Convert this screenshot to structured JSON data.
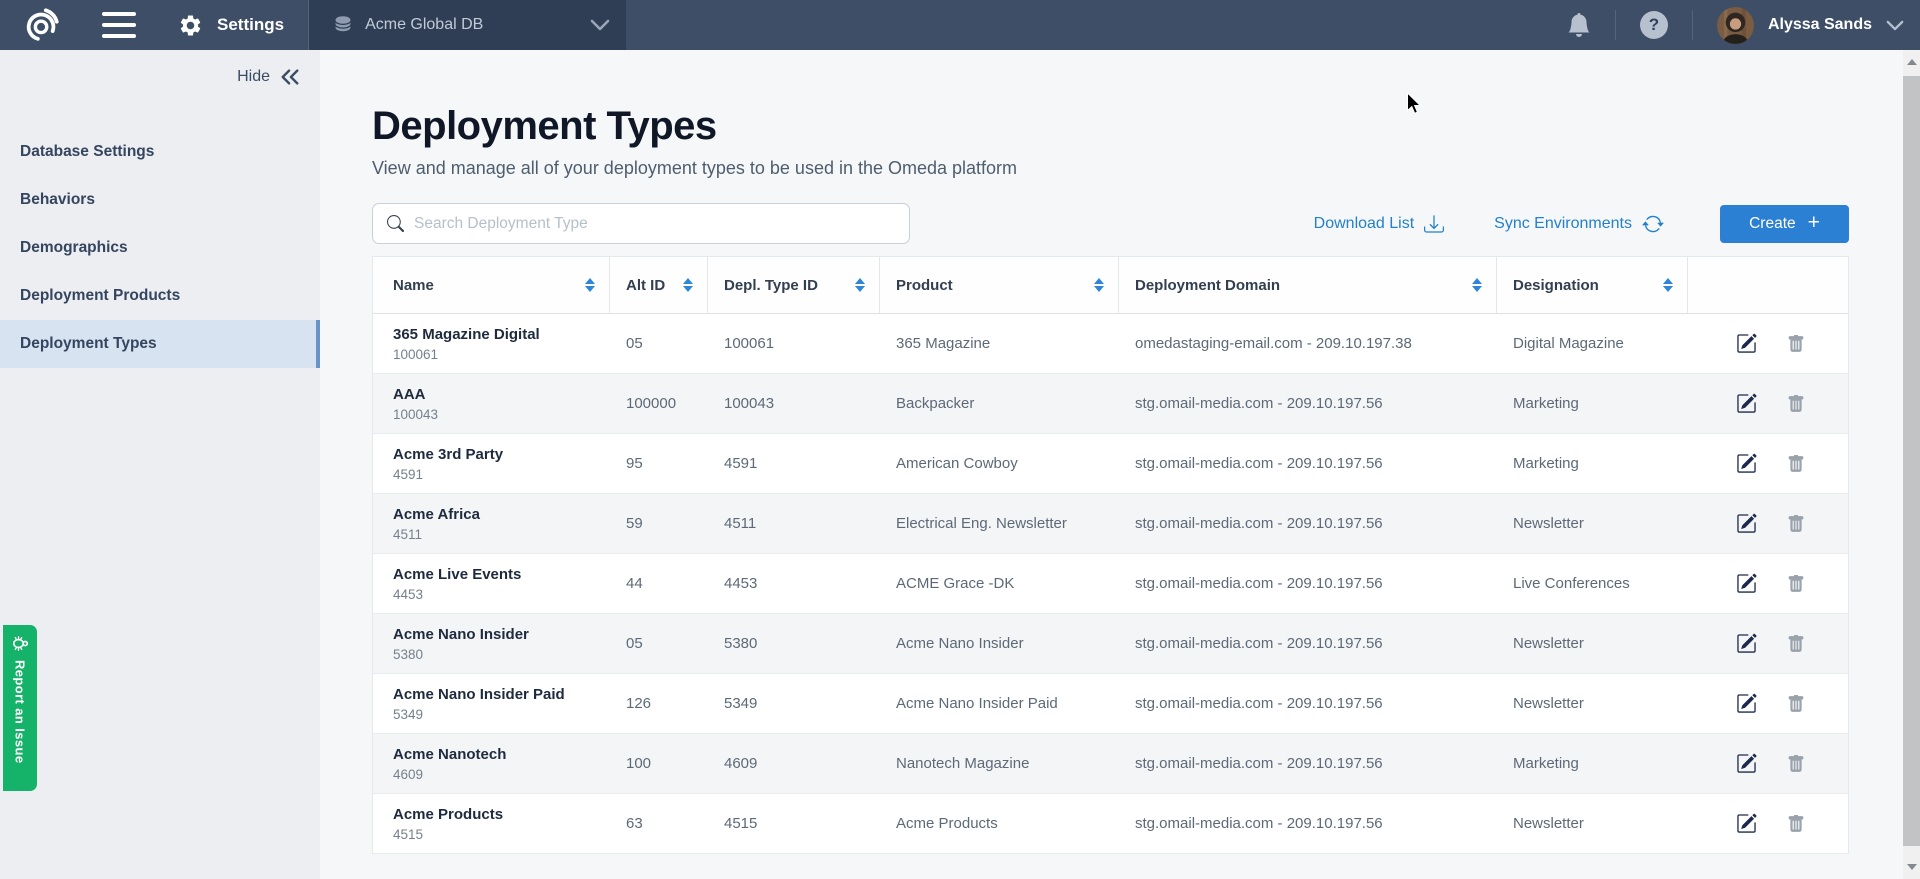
{
  "navbar": {
    "settings_label": "Settings",
    "database_selector": "Acme Global DB",
    "user_name": "Alyssa Sands",
    "help_glyph": "?"
  },
  "sidebar": {
    "hide_label": "Hide",
    "items": [
      {
        "label": "Database Settings",
        "selected": false
      },
      {
        "label": "Behaviors",
        "selected": false
      },
      {
        "label": "Demographics",
        "selected": false
      },
      {
        "label": "Deployment Products",
        "selected": false
      },
      {
        "label": "Deployment Types",
        "selected": true
      }
    ]
  },
  "report_issue": {
    "label": "Report an Issue"
  },
  "main": {
    "title": "Deployment Types",
    "subtitle": "View and manage all of your deployment types to be used in the Omeda platform",
    "search_placeholder": "Search Deployment Type",
    "actions": {
      "download": "Download List",
      "sync": "Sync Environments",
      "create": "Create",
      "create_plus": "+"
    },
    "table": {
      "columns": [
        "Name",
        "Alt ID",
        "Depl. Type ID",
        "Product",
        "Deployment Domain",
        "Designation"
      ],
      "rows": [
        {
          "name": "365 Magazine Digital",
          "id": "100061",
          "alt_id": "05",
          "depl_type_id": "100061",
          "product": "365 Magazine",
          "domain": "omedastaging-email.com - 209.10.197.38",
          "designation": "Digital Magazine"
        },
        {
          "name": "AAA",
          "id": "100043",
          "alt_id": "100000",
          "depl_type_id": "100043",
          "product": "Backpacker",
          "domain": "stg.omail-media.com - 209.10.197.56",
          "designation": "Marketing"
        },
        {
          "name": "Acme 3rd Party",
          "id": "4591",
          "alt_id": "95",
          "depl_type_id": "4591",
          "product": "American Cowboy",
          "domain": "stg.omail-media.com - 209.10.197.56",
          "designation": "Marketing"
        },
        {
          "name": "Acme Africa",
          "id": "4511",
          "alt_id": "59",
          "depl_type_id": "4511",
          "product": "Electrical Eng. Newsletter",
          "domain": "stg.omail-media.com - 209.10.197.56",
          "designation": "Newsletter"
        },
        {
          "name": "Acme Live Events",
          "id": "4453",
          "alt_id": "44",
          "depl_type_id": "4453",
          "product": "ACME Grace -DK",
          "domain": "stg.omail-media.com - 209.10.197.56",
          "designation": "Live Conferences"
        },
        {
          "name": "Acme Nano Insider",
          "id": "5380",
          "alt_id": "05",
          "depl_type_id": "5380",
          "product": "Acme Nano Insider",
          "domain": "stg.omail-media.com - 209.10.197.56",
          "designation": "Newsletter"
        },
        {
          "name": "Acme Nano Insider Paid",
          "id": "5349",
          "alt_id": "126",
          "depl_type_id": "5349",
          "product": "Acme Nano Insider Paid",
          "domain": "stg.omail-media.com - 209.10.197.56",
          "designation": "Newsletter"
        },
        {
          "name": "Acme Nanotech",
          "id": "4609",
          "alt_id": "100",
          "depl_type_id": "4609",
          "product": "Nanotech Magazine",
          "domain": "stg.omail-media.com - 209.10.197.56",
          "designation": "Marketing"
        },
        {
          "name": "Acme Products",
          "id": "4515",
          "alt_id": "63",
          "depl_type_id": "4515",
          "product": "Acme Products",
          "domain": "stg.omail-media.com - 209.10.197.56",
          "designation": "Newsletter"
        }
      ]
    }
  },
  "colors": {
    "navbar_bg": "#3d4e66",
    "navbar_selector_bg": "#2f3e55",
    "sidebar_bg": "#eceef1",
    "sidebar_selected_bg": "#d8e3f2",
    "link_blue": "#2480ca",
    "create_button_bg": "#2c80d3",
    "sort_arrow_blue": "#2e86d8",
    "report_issue_green": "#15b269",
    "row_stripe": "#f4f5f7"
  }
}
